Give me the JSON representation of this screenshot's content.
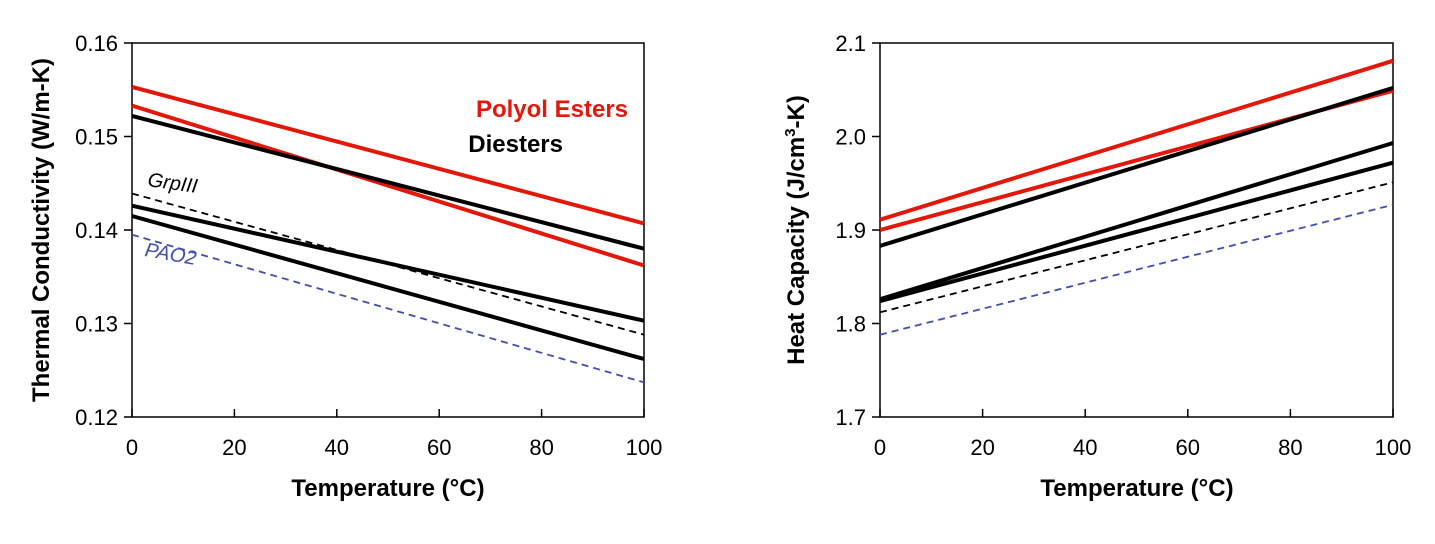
{
  "colors": {
    "polyol_esters": "#e3170a",
    "diesters": "#000000",
    "grpiii": "#000000",
    "pao2": "#3f4fb0"
  },
  "chart_data": [
    {
      "type": "line",
      "xlabel": "Temperature (°C)",
      "ylabel": "Thermal Conductivity (W/m-K)",
      "xlim": [
        0,
        100
      ],
      "ylim": [
        0.12,
        0.16
      ],
      "xticks": [
        0,
        20,
        40,
        60,
        80,
        100
      ],
      "yticks": [
        0.12,
        0.13,
        0.14,
        0.15,
        0.16
      ],
      "xtick_labels": [
        "0",
        "20",
        "40",
        "60",
        "80",
        "100"
      ],
      "ytick_labels": [
        "0.12",
        "0.13",
        "0.14",
        "0.15",
        "0.16"
      ],
      "grid": false,
      "legend_entries": [
        {
          "text": "Polyol Esters",
          "color": "#e3170a"
        },
        {
          "text": "Diesters",
          "color": "#000000"
        }
      ],
      "annotations": [
        {
          "text": "GrpIII",
          "color": "#000000"
        },
        {
          "text": "PAO2",
          "color": "#3f4fb0"
        }
      ],
      "series": [
        {
          "group": "polyol_esters",
          "style": "solid",
          "x": [
            0,
            100
          ],
          "y": [
            0.1553,
            0.1407
          ]
        },
        {
          "group": "polyol_esters",
          "style": "solid",
          "x": [
            0,
            100
          ],
          "y": [
            0.1533,
            0.1362
          ]
        },
        {
          "group": "diesters",
          "style": "solid",
          "x": [
            0,
            100
          ],
          "y": [
            0.1522,
            0.138
          ]
        },
        {
          "group": "diesters",
          "style": "solid",
          "x": [
            0,
            100
          ],
          "y": [
            0.1426,
            0.1303
          ]
        },
        {
          "group": "diesters",
          "style": "solid",
          "x": [
            0,
            100
          ],
          "y": [
            0.1415,
            0.1262
          ]
        },
        {
          "group": "grpiii",
          "style": "dashed",
          "x": [
            0,
            100
          ],
          "y": [
            0.1439,
            0.1288
          ]
        },
        {
          "group": "pao2",
          "style": "dashed",
          "x": [
            0,
            100
          ],
          "y": [
            0.1395,
            0.1237
          ]
        }
      ]
    },
    {
      "type": "line",
      "xlabel": "Temperature (°C)",
      "ylabel_prefix": "Heat Capacity (J/cm",
      "ylabel_sup": "3",
      "ylabel_suffix": "-K)",
      "xlim": [
        0,
        100
      ],
      "ylim": [
        1.7,
        2.1
      ],
      "xticks": [
        0,
        20,
        40,
        60,
        80,
        100
      ],
      "yticks": [
        1.7,
        1.8,
        1.9,
        2.0,
        2.1
      ],
      "xtick_labels": [
        "0",
        "20",
        "40",
        "60",
        "80",
        "100"
      ],
      "ytick_labels": [
        "1.7",
        "1.8",
        "1.9",
        "2.0",
        "2.1"
      ],
      "grid": false,
      "series": [
        {
          "group": "polyol_esters",
          "style": "solid",
          "x": [
            0,
            100
          ],
          "y": [
            1.911,
            2.081
          ]
        },
        {
          "group": "polyol_esters",
          "style": "solid",
          "x": [
            0,
            100
          ],
          "y": [
            1.9,
            2.049
          ]
        },
        {
          "group": "diesters",
          "style": "solid",
          "x": [
            0,
            100
          ],
          "y": [
            1.883,
            2.052
          ]
        },
        {
          "group": "diesters",
          "style": "solid",
          "x": [
            0,
            100
          ],
          "y": [
            1.826,
            1.993
          ]
        },
        {
          "group": "diesters",
          "style": "solid",
          "x": [
            0,
            100
          ],
          "y": [
            1.824,
            1.972
          ]
        },
        {
          "group": "grpiii",
          "style": "dashed",
          "x": [
            0,
            100
          ],
          "y": [
            1.812,
            1.951
          ]
        },
        {
          "group": "pao2",
          "style": "dashed",
          "x": [
            0,
            100
          ],
          "y": [
            1.788,
            1.927
          ]
        }
      ]
    }
  ]
}
